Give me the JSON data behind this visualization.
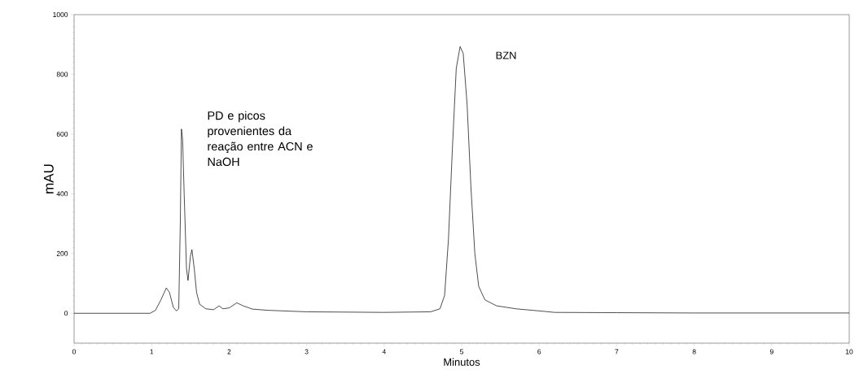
{
  "chart_data": {
    "type": "line",
    "xlabel": "Minutos",
    "ylabel": "mAU",
    "xlim": [
      0,
      10
    ],
    "ylim": [
      -100,
      1000
    ],
    "xticks": [
      0,
      1,
      2,
      3,
      4,
      5,
      6,
      7,
      8,
      9,
      10
    ],
    "yticks": [
      0,
      200,
      400,
      600,
      800,
      1000
    ],
    "grid": false,
    "marker": "none",
    "line_style": "solid",
    "annotations": [
      "PD e picos provenientes da reação entre ACN e NaOH",
      "BZN"
    ],
    "series": [
      {
        "color": "#000000",
        "x": [
          0,
          0.98,
          1.05,
          1.12,
          1.19,
          1.23,
          1.28,
          1.32,
          1.35,
          1.37,
          1.385,
          1.4,
          1.42,
          1.45,
          1.47,
          1.5,
          1.52,
          1.55,
          1.58,
          1.62,
          1.7,
          1.8,
          1.87,
          1.92,
          2.0,
          2.1,
          2.18,
          2.3,
          2.5,
          3,
          4,
          4.6,
          4.72,
          4.78,
          4.83,
          4.88,
          4.93,
          4.98,
          5.02,
          5.07,
          5.12,
          5.17,
          5.22,
          5.3,
          5.45,
          5.7,
          6,
          6.2,
          7,
          8,
          10
        ],
        "values": [
          0,
          0,
          10,
          45,
          85,
          70,
          20,
          8,
          15,
          300,
          617,
          580,
          400,
          150,
          110,
          190,
          213,
          150,
          70,
          30,
          15,
          12,
          25,
          15,
          18,
          35,
          25,
          14,
          10,
          5,
          3,
          5,
          15,
          60,
          250,
          550,
          820,
          893,
          870,
          700,
          420,
          200,
          90,
          45,
          25,
          15,
          8,
          3,
          2,
          1,
          1
        ]
      }
    ]
  }
}
